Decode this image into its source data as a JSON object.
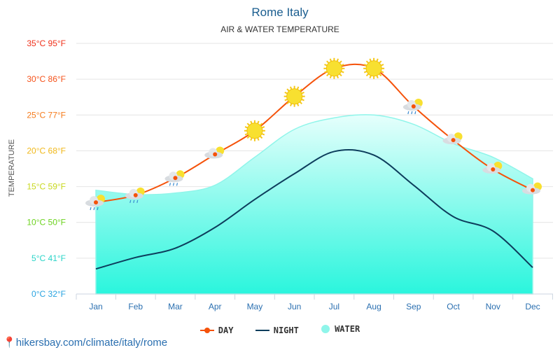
{
  "chart_data": {
    "type": "line",
    "title": "Rome Italy",
    "subtitle": "AIR & WATER TEMPERATURE",
    "ylabel": "TEMPERATURE",
    "ylim": [
      0,
      35
    ],
    "yticks": [
      {
        "v": 0,
        "label": "0°C 32°F",
        "color": "#29a3e0"
      },
      {
        "v": 5,
        "label": "5°C 41°F",
        "color": "#2ad4c8"
      },
      {
        "v": 10,
        "label": "10°C 50°F",
        "color": "#6cd21e"
      },
      {
        "v": 15,
        "label": "15°C 59°F",
        "color": "#c8d81e"
      },
      {
        "v": 20,
        "label": "20°C 68°F",
        "color": "#f0b81a"
      },
      {
        "v": 25,
        "label": "25°C 77°F",
        "color": "#f57a1a"
      },
      {
        "v": 30,
        "label": "30°C 86°F",
        "color": "#f5521a"
      },
      {
        "v": 35,
        "label": "35°C 95°F",
        "color": "#f0301a"
      }
    ],
    "categories": [
      "Jan",
      "Feb",
      "Mar",
      "Apr",
      "May",
      "Jun",
      "Jul",
      "Aug",
      "Sep",
      "Oct",
      "Nov",
      "Dec"
    ],
    "series": [
      {
        "name": "DAY",
        "color": "#f5520a",
        "values": [
          12.8,
          13.8,
          16.2,
          19.5,
          22.8,
          27.6,
          31.5,
          31.5,
          26.2,
          21.5,
          17.4,
          14.5
        ]
      },
      {
        "name": "NIGHT",
        "color": "#0d3d5c",
        "values": [
          3.5,
          5.1,
          6.4,
          9.3,
          13.2,
          16.8,
          19.9,
          19.4,
          15.2,
          10.8,
          8.8,
          3.7
        ]
      },
      {
        "name": "WATER",
        "color": "#8ff5ea",
        "values": [
          14.5,
          13.9,
          14.1,
          15.2,
          19.1,
          23.0,
          24.6,
          25.0,
          23.7,
          21.0,
          19.1,
          16.1
        ]
      }
    ],
    "weather_icons": [
      "cloud-sun-rain-icon",
      "cloud-sun-rain-icon",
      "cloud-sun-rain-icon",
      "cloud-sun-icon",
      "sun-icon",
      "sun-icon",
      "sun-icon",
      "sun-icon",
      "cloud-sun-rain-icon",
      "cloud-sun-icon",
      "cloud-sun-icon",
      "cloud-sun-icon"
    ],
    "grid": true,
    "legend": "bottom"
  },
  "footer": {
    "url": "hikersbay.com/climate/italy/rome"
  }
}
